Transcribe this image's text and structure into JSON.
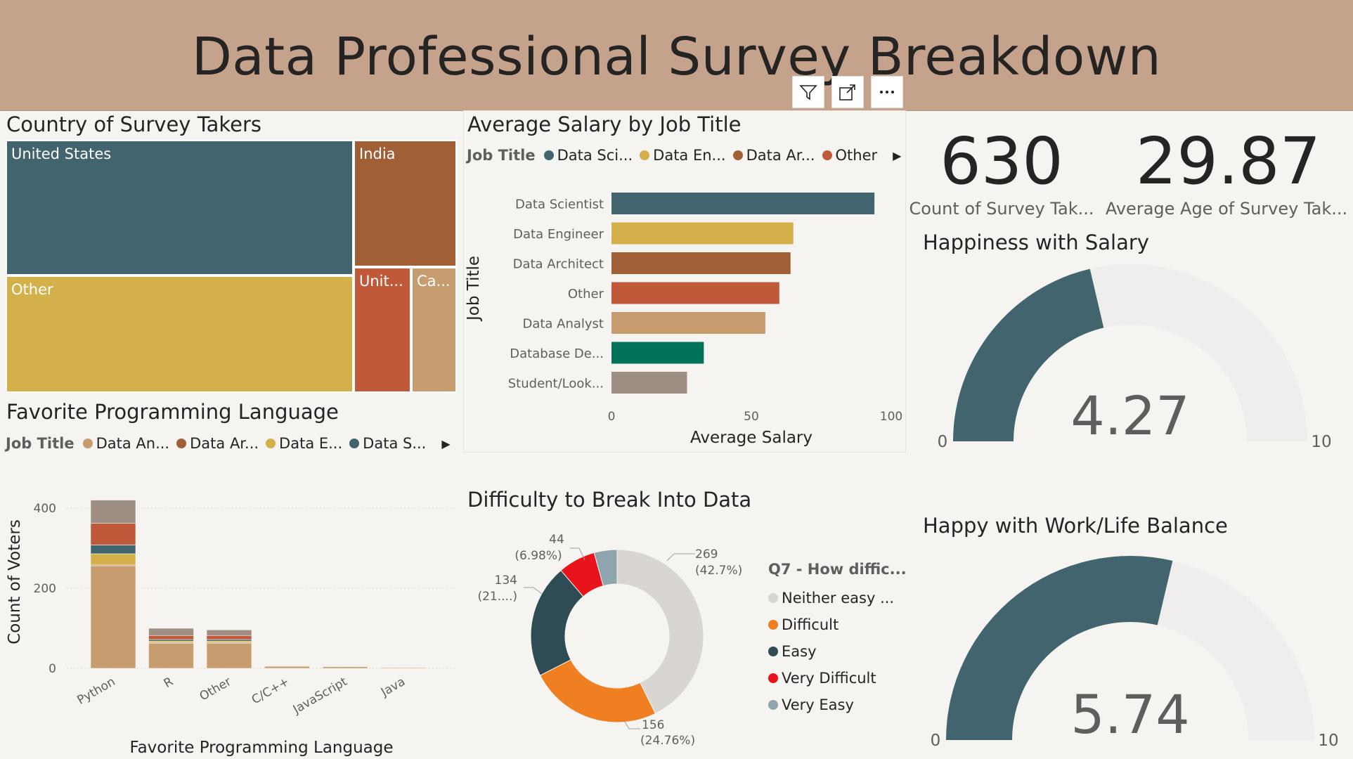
{
  "header": {
    "title": "Data Professional Survey Breakdown"
  },
  "toolbar_icons": [
    "filter-icon",
    "focus-mode-icon",
    "more-options-icon"
  ],
  "treemap": {
    "title": "Country of Survey Takers",
    "cells": [
      {
        "label": "United States",
        "color": "#41646e"
      },
      {
        "label": "Other",
        "color": "#d4b04a"
      },
      {
        "label": "India",
        "color": "#a05f35"
      },
      {
        "label": "Unit...",
        "color": "#c0583a"
      },
      {
        "label": "Ca...",
        "color": "#c79c6e"
      }
    ]
  },
  "salary_chart": {
    "title": "Average Salary by Job Title",
    "legend_label": "Job Title",
    "legend": [
      {
        "name": "Data Sci...",
        "color": "#41646e"
      },
      {
        "name": "Data En...",
        "color": "#d4b04a"
      },
      {
        "name": "Data Ar...",
        "color": "#a05f35"
      },
      {
        "name": "Other",
        "color": "#c0583a"
      }
    ],
    "ylabel": "Job Title",
    "xlabel": "Average Salary"
  },
  "kpis": {
    "count": {
      "value": "630",
      "label": "Count of Survey Tak..."
    },
    "age": {
      "value": "29.87",
      "label": "Average Age of Survey Tak..."
    }
  },
  "gauges": [
    {
      "title": "Happiness with Salary",
      "value": 4.27,
      "value_text": "4.27",
      "min": 0,
      "max": 10,
      "min_label": "0",
      "max_label": "10",
      "fill": "#41646e",
      "track": "#efeeed"
    },
    {
      "title": "Happy with Work/Life Balance",
      "value": 5.74,
      "value_text": "5.74",
      "min": 0,
      "max": 10,
      "min_label": "0",
      "max_label": "10",
      "fill": "#41646e",
      "track": "#efeeed"
    }
  ],
  "lang_chart": {
    "title": "Favorite Programming Language",
    "legend_label": "Job Title",
    "legend": [
      {
        "name": "Data An...",
        "color": "#c79c6e"
      },
      {
        "name": "Data Ar...",
        "color": "#a05f35"
      },
      {
        "name": "Data E...",
        "color": "#d4b04a"
      },
      {
        "name": "Data S...",
        "color": "#41646e"
      }
    ],
    "ylabel": "Count of Voters",
    "xlabel": "Favorite Programming Language"
  },
  "donut": {
    "title": "Difficulty to Break Into Data",
    "legend_title": "Q7 - How diffic...",
    "legend": [
      {
        "name": "Neither easy ...",
        "color": "#d9d6d2"
      },
      {
        "name": "Difficult",
        "color": "#f07f22"
      },
      {
        "name": "Easy",
        "color": "#2f4b53"
      },
      {
        "name": "Very Difficult",
        "color": "#e8131b"
      },
      {
        "name": "Very Easy",
        "color": "#8fa5ae"
      }
    ],
    "labels": [
      {
        "value": "269",
        "pct": "(42.7%)"
      },
      {
        "value": "156",
        "pct": "(24.76%)"
      },
      {
        "value": "134",
        "pct": "(21....)"
      },
      {
        "value": "44",
        "pct": "(6.98%)"
      }
    ]
  },
  "chart_data": [
    {
      "type": "treemap",
      "title": "Country of Survey Takers",
      "categories": [
        "United States",
        "Other",
        "India",
        "Unit...",
        "Ca..."
      ],
      "values": [
        262,
        224,
        64,
        40,
        40
      ]
    },
    {
      "type": "bar",
      "orientation": "horizontal",
      "title": "Average Salary by Job Title",
      "categories": [
        "Data Scientist",
        "Data Engineer",
        "Data Architect",
        "Other",
        "Data Analyst",
        "Database De...",
        "Student/Look..."
      ],
      "values": [
        94,
        65,
        64,
        60,
        55,
        33,
        27
      ],
      "colors": [
        "#41646e",
        "#d4b04a",
        "#a05f35",
        "#c0583a",
        "#c79c6e",
        "#00735a",
        "#9d8f84"
      ],
      "xlabel": "Average Salary",
      "ylabel": "Job Title",
      "xlim": [
        0,
        100
      ],
      "xticks": [
        0,
        50,
        100
      ]
    },
    {
      "type": "bar",
      "stacked": true,
      "title": "Favorite Programming Language",
      "categories": [
        "Python",
        "R",
        "Other",
        "C/C++",
        "JavaScript",
        "Java"
      ],
      "series": [
        {
          "name": "Data An...",
          "color": "#c79c6e",
          "values": [
            256,
            62,
            62,
            5,
            4,
            2
          ]
        },
        {
          "name": "Data Ar...",
          "color": "#a05f35",
          "values": [
            2,
            2,
            2,
            1,
            0,
            0
          ]
        },
        {
          "name": "Data E...",
          "color": "#d4b04a",
          "values": [
            28,
            4,
            4,
            1,
            1,
            0
          ]
        },
        {
          "name": "Data S...",
          "color": "#41646e",
          "values": [
            22,
            4,
            4,
            1,
            1,
            1
          ]
        },
        {
          "color": "#c0583a",
          "values": [
            54,
            10,
            10,
            1,
            1,
            0
          ]
        },
        {
          "color": "#9d8f84",
          "values": [
            58,
            18,
            14,
            1,
            1,
            1
          ]
        }
      ],
      "xlabel": "Favorite Programming Language",
      "ylabel": "Count of Voters",
      "ylim": [
        0,
        430
      ],
      "yticks": [
        0,
        200,
        400
      ]
    },
    {
      "type": "pie",
      "donut": true,
      "title": "Difficulty to Break Into Data",
      "categories": [
        "Neither easy ...",
        "Difficult",
        "Easy",
        "Very Difficult",
        "Very Easy"
      ],
      "values": [
        269,
        156,
        134,
        44,
        27
      ],
      "colors": [
        "#d9d6d2",
        "#f07f22",
        "#2f4b53",
        "#e8131b",
        "#8fa5ae"
      ]
    }
  ]
}
